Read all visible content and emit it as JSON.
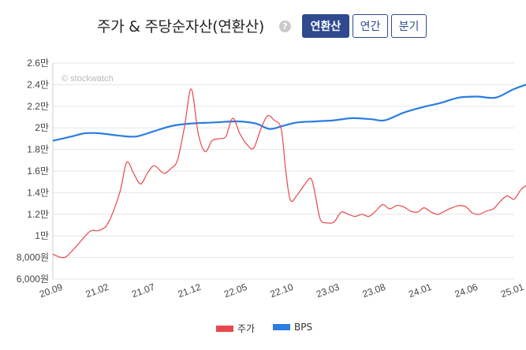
{
  "header": {
    "title": "주가 & 주당순자산(연환산)",
    "help_glyph": "?",
    "buttons": [
      {
        "label": "연환산",
        "active": true
      },
      {
        "label": "연간",
        "active": false
      },
      {
        "label": "분기",
        "active": false
      }
    ]
  },
  "watermark": "© stockwatch",
  "colors": {
    "price": "#e8474c",
    "bps": "#2a7de1",
    "accent": "#2f4a8f",
    "grid": "#e6e6e6"
  },
  "chart_data": {
    "type": "line",
    "ylim": [
      6000,
      26000
    ],
    "y_ticks": [
      {
        "value": 6000,
        "label": "6,000원"
      },
      {
        "value": 8000,
        "label": "8,000원"
      },
      {
        "value": 10000,
        "label": "1만"
      },
      {
        "value": 12000,
        "label": "1.2만"
      },
      {
        "value": 14000,
        "label": "1.4만"
      },
      {
        "value": 16000,
        "label": "1.6만"
      },
      {
        "value": 18000,
        "label": "1.8만"
      },
      {
        "value": 20000,
        "label": "2만"
      },
      {
        "value": 22000,
        "label": "2.2만"
      },
      {
        "value": 24000,
        "label": "2.4만"
      },
      {
        "value": 26000,
        "label": "2.6만"
      }
    ],
    "x_ticks": [
      "20.09",
      "21.02",
      "21.07",
      "21.12",
      "22.05",
      "22.10",
      "23.03",
      "23.08",
      "24.01",
      "24.06",
      "25.01"
    ],
    "series": [
      {
        "name": "주가",
        "color": "#e8474c",
        "points": [
          [
            0,
            8300
          ],
          [
            0.25,
            8000
          ],
          [
            0.5,
            9000
          ],
          [
            0.8,
            10400
          ],
          [
            1.0,
            10500
          ],
          [
            1.2,
            11200
          ],
          [
            1.45,
            14000
          ],
          [
            1.6,
            16800
          ],
          [
            1.75,
            15800
          ],
          [
            1.9,
            14800
          ],
          [
            2.05,
            15800
          ],
          [
            2.2,
            16500
          ],
          [
            2.4,
            15800
          ],
          [
            2.55,
            16200
          ],
          [
            2.7,
            17000
          ],
          [
            2.85,
            20000
          ],
          [
            3.0,
            23600
          ],
          [
            3.15,
            19500
          ],
          [
            3.3,
            17800
          ],
          [
            3.45,
            18800
          ],
          [
            3.6,
            19000
          ],
          [
            3.75,
            19200
          ],
          [
            3.9,
            20900
          ],
          [
            4.05,
            19500
          ],
          [
            4.2,
            18500
          ],
          [
            4.35,
            18100
          ],
          [
            4.5,
            19800
          ],
          [
            4.65,
            21100
          ],
          [
            4.8,
            20700
          ],
          [
            4.95,
            19900
          ],
          [
            5.05,
            16000
          ],
          [
            5.15,
            13300
          ],
          [
            5.3,
            13800
          ],
          [
            5.45,
            14700
          ],
          [
            5.6,
            15300
          ],
          [
            5.7,
            13500
          ],
          [
            5.8,
            11500
          ],
          [
            5.95,
            11200
          ],
          [
            6.1,
            11300
          ],
          [
            6.25,
            12200
          ],
          [
            6.4,
            12000
          ],
          [
            6.55,
            11800
          ],
          [
            6.7,
            12000
          ],
          [
            6.85,
            11800
          ],
          [
            7.0,
            12300
          ],
          [
            7.15,
            12900
          ],
          [
            7.3,
            12500
          ],
          [
            7.45,
            12800
          ],
          [
            7.6,
            12700
          ],
          [
            7.75,
            12300
          ],
          [
            7.9,
            12200
          ],
          [
            8.05,
            12600
          ],
          [
            8.2,
            12200
          ],
          [
            8.35,
            12000
          ],
          [
            8.5,
            12300
          ],
          [
            8.65,
            12600
          ],
          [
            8.8,
            12800
          ],
          [
            8.95,
            12700
          ],
          [
            9.1,
            12100
          ],
          [
            9.25,
            12000
          ],
          [
            9.4,
            12300
          ],
          [
            9.55,
            12500
          ],
          [
            9.7,
            13200
          ],
          [
            9.85,
            13700
          ],
          [
            10.0,
            13400
          ],
          [
            10.15,
            14300
          ],
          [
            10.3,
            14700
          ],
          [
            10.45,
            14600
          ],
          [
            10.6,
            13800
          ],
          [
            10.75,
            14100
          ],
          [
            10.9,
            14300
          ],
          [
            11.05,
            14400
          ],
          [
            11.2,
            14500
          ],
          [
            11.35,
            14450
          ],
          [
            11.5,
            14400
          ]
        ]
      },
      {
        "name": "BPS",
        "color": "#2a7de1",
        "points": [
          [
            0,
            18800
          ],
          [
            0.4,
            19200
          ],
          [
            0.7,
            19500
          ],
          [
            1.0,
            19500
          ],
          [
            1.4,
            19300
          ],
          [
            1.8,
            19200
          ],
          [
            2.2,
            19700
          ],
          [
            2.6,
            20200
          ],
          [
            3.0,
            20400
          ],
          [
            3.5,
            20500
          ],
          [
            4.0,
            20600
          ],
          [
            4.4,
            20400
          ],
          [
            4.7,
            19900
          ],
          [
            5.0,
            20200
          ],
          [
            5.3,
            20500
          ],
          [
            5.7,
            20600
          ],
          [
            6.1,
            20700
          ],
          [
            6.5,
            20900
          ],
          [
            6.9,
            20800
          ],
          [
            7.2,
            20700
          ],
          [
            7.6,
            21400
          ],
          [
            8.0,
            21900
          ],
          [
            8.4,
            22300
          ],
          [
            8.8,
            22800
          ],
          [
            9.2,
            22900
          ],
          [
            9.6,
            22800
          ],
          [
            10.0,
            23600
          ],
          [
            10.4,
            24200
          ],
          [
            10.8,
            24700
          ]
        ]
      }
    ]
  }
}
